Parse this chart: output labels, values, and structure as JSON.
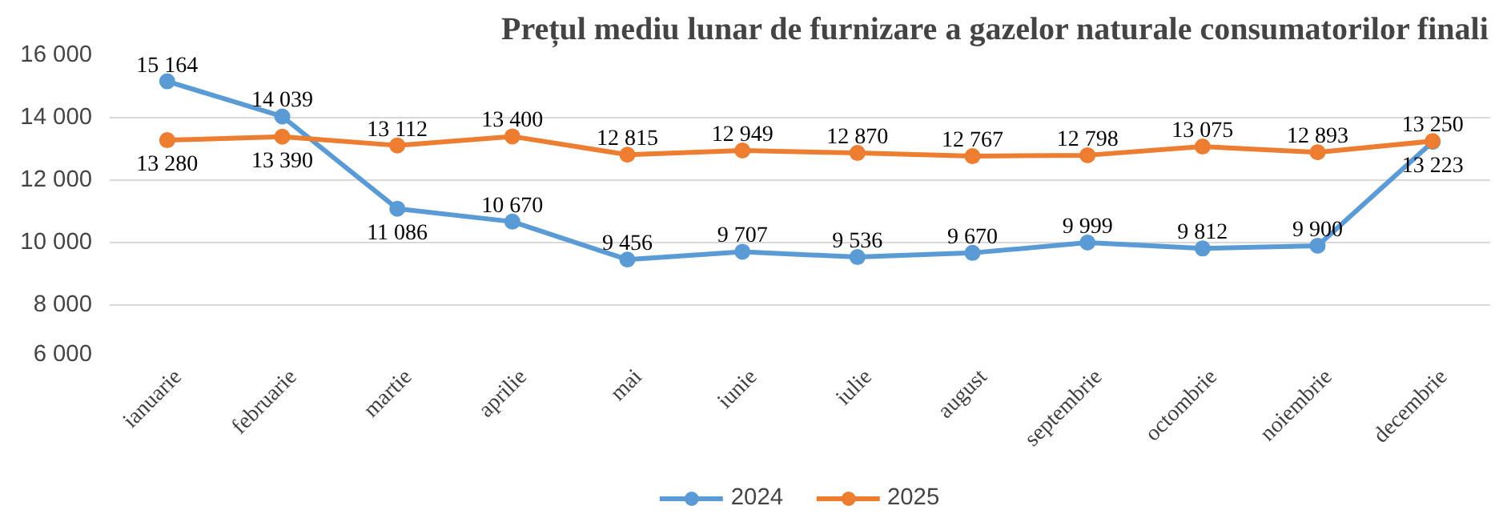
{
  "chart_data": {
    "type": "line",
    "title": "Prețul mediu lunar de furnizare a gazelor naturale consumatorilor finali",
    "categories": [
      "ianuarie",
      "februarie",
      "martie",
      "aprilie",
      "mai",
      "iunie",
      "iulie",
      "august",
      "septembrie",
      "octombrie",
      "noiembrie",
      "decembrie"
    ],
    "series": [
      {
        "name": "2024",
        "color": "#5b9bd5",
        "values": [
          15164,
          14039,
          11086,
          10670,
          9456,
          9707,
          9536,
          9670,
          9999,
          9812,
          9900,
          13223
        ],
        "value_labels": [
          "15 164",
          "14 039",
          "11 086",
          "10 670",
          "9 456",
          "9 707",
          "9 536",
          "9 670",
          "9 999",
          "9 812",
          "9 900",
          "13 223"
        ]
      },
      {
        "name": "2025",
        "color": "#ed7d31",
        "values": [
          13280,
          13390,
          13112,
          13400,
          12815,
          12949,
          12870,
          12767,
          12798,
          13075,
          12893,
          13250
        ],
        "value_labels": [
          "13 280",
          "13 390",
          "13 112",
          "13 400",
          "12 815",
          "12 949",
          "12 870",
          "12 767",
          "12 798",
          "13 075",
          "12 893",
          "13 250"
        ]
      }
    ],
    "ylim": [
      6000,
      16000
    ],
    "yticks": [
      {
        "value": 6000,
        "label": "6 000"
      },
      {
        "value": 8000,
        "label": "8 000"
      },
      {
        "value": 10000,
        "label": "10 000"
      },
      {
        "value": 12000,
        "label": "12 000"
      },
      {
        "value": 14000,
        "label": "14 000"
      },
      {
        "value": 16000,
        "label": "16 000"
      }
    ],
    "grid": "y",
    "legend": "bottom",
    "marker": "circle",
    "line_style": "solid"
  }
}
